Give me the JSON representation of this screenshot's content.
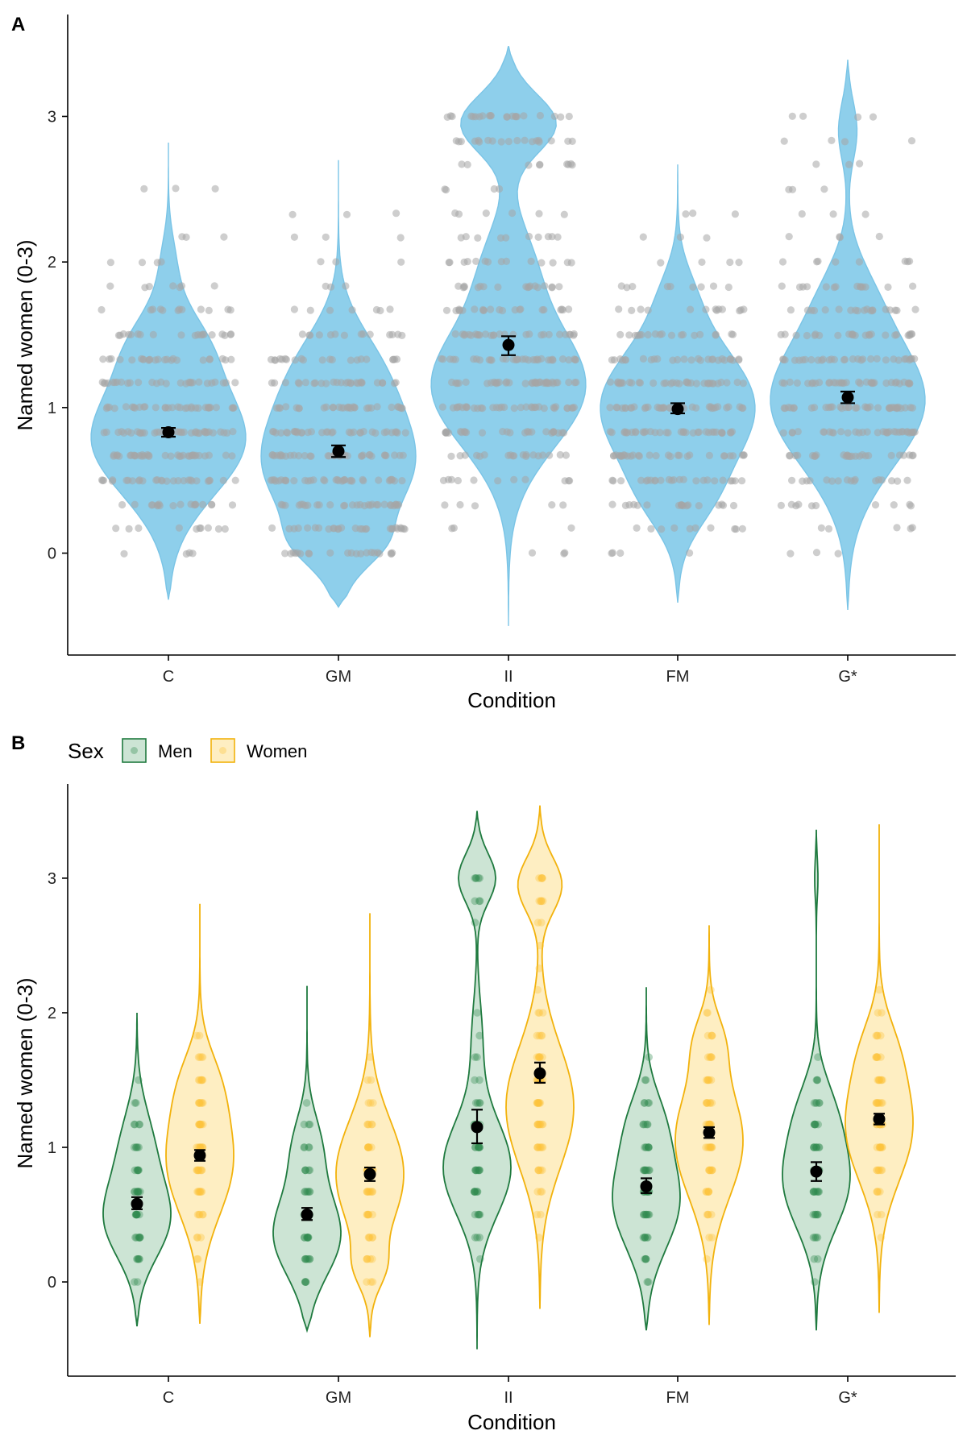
{
  "chart_data": [
    {
      "panel": "A",
      "type": "violin",
      "xlabel": "Condition",
      "ylabel": "Named women (0-3)",
      "categories": [
        "C",
        "GM",
        "II",
        "FM",
        "G*"
      ],
      "ylim": [
        -0.7,
        3.7
      ],
      "yticks": [
        0,
        1,
        2,
        3
      ],
      "violin_color": "#8ecfeb",
      "violin_edge": "#7ac4e6",
      "point_color": "#a6a6a6",
      "mean_color": "#000000",
      "series": [
        {
          "category": "C",
          "mean": 0.83,
          "ci": [
            0.8,
            0.86
          ],
          "min": -0.32,
          "max": 2.82,
          "levels": [
            0,
            0.17,
            0.33,
            0.5,
            0.67,
            0.83,
            1.0,
            1.17,
            1.33,
            1.5,
            1.67,
            1.83,
            2.0,
            2.17,
            2.5
          ]
        },
        {
          "category": "GM",
          "mean": 0.7,
          "ci": [
            0.66,
            0.74
          ],
          "min": -0.37,
          "max": 2.7,
          "levels": [
            0,
            0.17,
            0.33,
            0.5,
            0.67,
            0.83,
            1.0,
            1.17,
            1.33,
            1.5,
            1.67,
            1.83,
            2.0,
            2.17,
            2.33
          ]
        },
        {
          "category": "II",
          "mean": 1.43,
          "ci": [
            1.36,
            1.49
          ],
          "min": -0.5,
          "max": 3.48,
          "levels": [
            0,
            0.17,
            0.33,
            0.5,
            0.67,
            0.83,
            1.0,
            1.17,
            1.33,
            1.5,
            1.67,
            1.83,
            2.0,
            2.17,
            2.33,
            2.5,
            2.67,
            2.83,
            3.0
          ]
        },
        {
          "category": "FM",
          "mean": 0.99,
          "ci": [
            0.96,
            1.03
          ],
          "min": -0.34,
          "max": 2.67,
          "levels": [
            0,
            0.17,
            0.33,
            0.5,
            0.67,
            0.83,
            1.0,
            1.17,
            1.33,
            1.5,
            1.67,
            1.83,
            2.0,
            2.17,
            2.33
          ]
        },
        {
          "category": "G*",
          "mean": 1.07,
          "ci": [
            1.03,
            1.11
          ],
          "min": -0.39,
          "max": 3.39,
          "levels": [
            0,
            0.17,
            0.33,
            0.5,
            0.67,
            0.83,
            1.0,
            1.17,
            1.33,
            1.5,
            1.67,
            1.83,
            2.0,
            2.17,
            2.33,
            2.5,
            2.67,
            2.83,
            3.0
          ]
        }
      ]
    },
    {
      "panel": "B",
      "type": "violin",
      "xlabel": "Condition",
      "ylabel": "Named women (0-3)",
      "categories": [
        "C",
        "GM",
        "II",
        "FM",
        "G*"
      ],
      "ylim": [
        -0.7,
        3.7
      ],
      "yticks": [
        0,
        1,
        2,
        3
      ],
      "legend": {
        "title": "Sex",
        "position": "top-left",
        "entries": [
          "Men",
          "Women"
        ]
      },
      "groups": [
        {
          "name": "Men",
          "fill": "#cce4d4",
          "edge": "#1f7a3f",
          "point": "#2d8a4e"
        },
        {
          "name": "Women",
          "fill": "#feeec2",
          "edge": "#f2b20c",
          "point": "#fbc23a"
        }
      ],
      "series": [
        {
          "name": "Men",
          "category": "C",
          "mean": 0.58,
          "ci": [
            0.54,
            0.63
          ],
          "min": -0.33,
          "max": 2.0
        },
        {
          "name": "Women",
          "category": "C",
          "mean": 0.94,
          "ci": [
            0.9,
            0.98
          ],
          "min": -0.31,
          "max": 2.81
        },
        {
          "name": "Men",
          "category": "GM",
          "mean": 0.5,
          "ci": [
            0.46,
            0.55
          ],
          "min": -0.36,
          "max": 2.2
        },
        {
          "name": "Women",
          "category": "GM",
          "mean": 0.8,
          "ci": [
            0.75,
            0.85
          ],
          "min": -0.41,
          "max": 2.74
        },
        {
          "name": "Men",
          "category": "II",
          "mean": 1.15,
          "ci": [
            1.03,
            1.28
          ],
          "min": -0.5,
          "max": 3.5
        },
        {
          "name": "Women",
          "category": "II",
          "mean": 1.55,
          "ci": [
            1.48,
            1.63
          ],
          "min": -0.2,
          "max": 3.54
        },
        {
          "name": "Men",
          "category": "FM",
          "mean": 0.71,
          "ci": [
            0.66,
            0.77
          ],
          "min": -0.36,
          "max": 2.19
        },
        {
          "name": "Women",
          "category": "FM",
          "mean": 1.11,
          "ci": [
            1.07,
            1.15
          ],
          "min": -0.32,
          "max": 2.65
        },
        {
          "name": "Men",
          "category": "G*",
          "mean": 0.82,
          "ci": [
            0.75,
            0.89
          ],
          "min": -0.36,
          "max": 3.36
        },
        {
          "name": "Women",
          "category": "G*",
          "mean": 1.21,
          "ci": [
            1.17,
            1.25
          ],
          "min": -0.23,
          "max": 3.4
        }
      ]
    }
  ]
}
